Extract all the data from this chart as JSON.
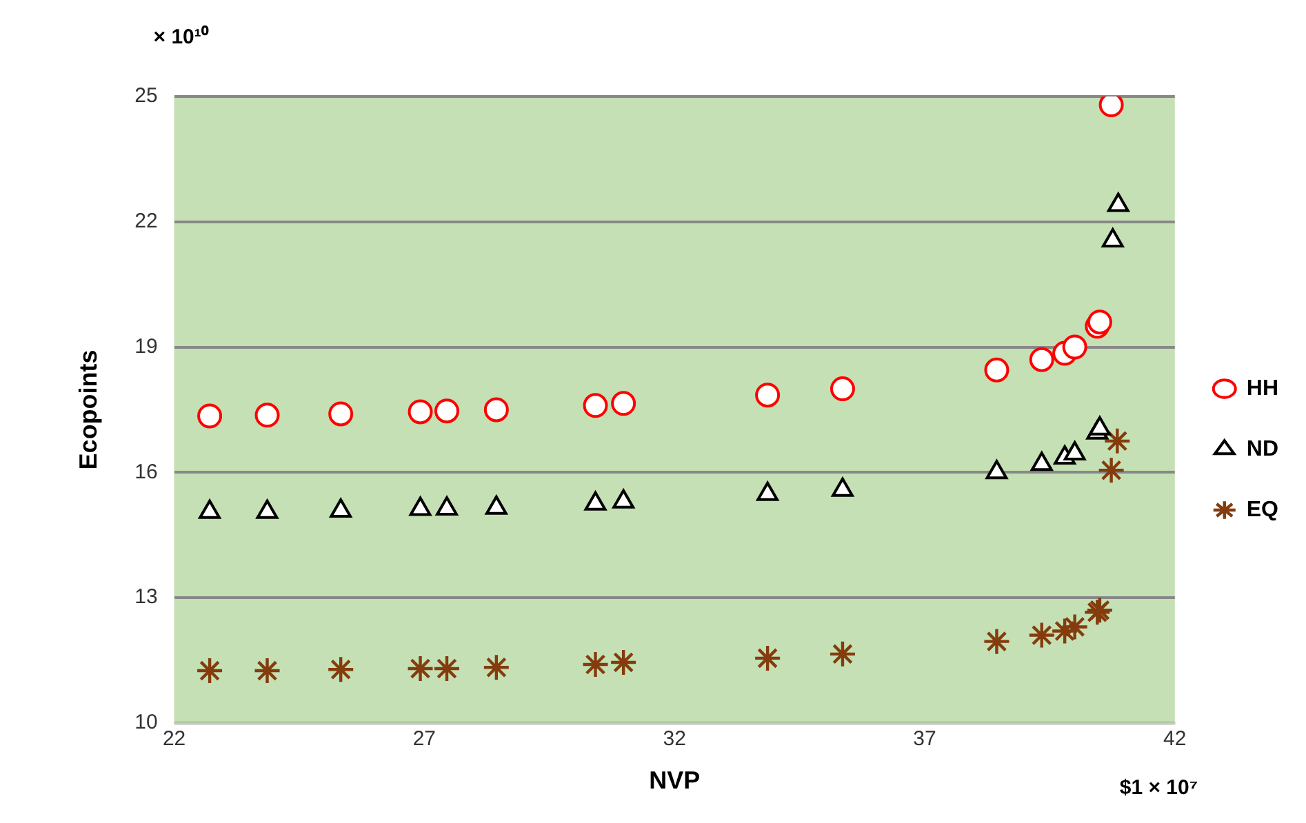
{
  "chart_data": {
    "type": "scatter",
    "xlabel": "NVP",
    "ylabel": "Ecopoints",
    "xlim": [
      22,
      42
    ],
    "xticks": [
      22,
      27,
      32,
      37,
      42
    ],
    "ylim": [
      10,
      25
    ],
    "yticks": [
      10,
      13,
      16,
      19,
      22,
      25
    ],
    "grid": "y",
    "legend": "right",
    "annotations": [
      "× 10¹⁰",
      "$1 × 10⁷"
    ],
    "series": [
      {
        "name": "HH",
        "color": "#ff0000",
        "marker": "circle",
        "x": [
          22.71,
          23.86,
          25.33,
          26.92,
          27.45,
          28.44,
          30.42,
          30.98,
          33.86,
          35.36,
          38.44,
          39.34,
          39.8,
          40.0,
          40.45,
          40.5,
          40.73
        ],
        "values": [
          17.35,
          17.37,
          17.4,
          17.45,
          17.47,
          17.5,
          17.6,
          17.65,
          17.85,
          18.0,
          18.45,
          18.7,
          18.85,
          19.0,
          19.5,
          19.6,
          24.8
        ]
      },
      {
        "name": "ND",
        "color": "#000000",
        "marker": "triangle",
        "x": [
          22.71,
          23.86,
          25.33,
          26.92,
          27.45,
          28.44,
          30.42,
          30.98,
          33.86,
          35.36,
          38.44,
          39.34,
          39.8,
          40.0,
          40.45,
          40.5,
          40.76,
          40.87
        ],
        "values": [
          15.05,
          15.05,
          15.08,
          15.12,
          15.13,
          15.15,
          15.25,
          15.3,
          15.48,
          15.58,
          16.0,
          16.2,
          16.35,
          16.45,
          16.95,
          17.05,
          21.55,
          22.4
        ]
      },
      {
        "name": "EQ",
        "color": "#843c0c",
        "marker": "cross",
        "x": [
          22.71,
          23.86,
          25.33,
          26.92,
          27.45,
          28.44,
          30.42,
          30.98,
          33.86,
          35.36,
          38.44,
          39.34,
          39.8,
          40.0,
          40.45,
          40.5,
          40.73,
          40.85
        ],
        "values": [
          11.25,
          11.25,
          11.28,
          11.3,
          11.3,
          11.33,
          11.4,
          11.45,
          11.55,
          11.65,
          11.95,
          12.1,
          12.2,
          12.3,
          12.65,
          12.7,
          16.05,
          16.75
        ]
      }
    ]
  }
}
